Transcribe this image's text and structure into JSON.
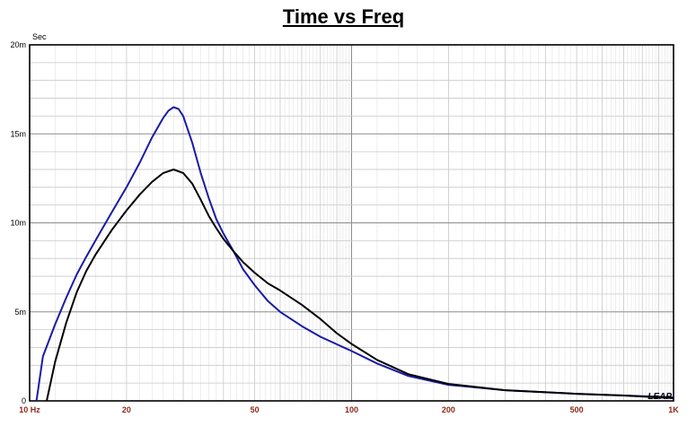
{
  "chart_data": {
    "type": "line",
    "title": "Time vs Freq",
    "y_unit": "Sec",
    "x_scale": "log",
    "xlim": [
      10,
      1000
    ],
    "ylim": [
      0,
      0.02
    ],
    "grid": true,
    "x_tick_labels": [
      {
        "value": 10,
        "label": "10  Hz"
      },
      {
        "value": 20,
        "label": "20"
      },
      {
        "value": 50,
        "label": "50"
      },
      {
        "value": 100,
        "label": "100"
      },
      {
        "value": 200,
        "label": "200"
      },
      {
        "value": 500,
        "label": "500"
      },
      {
        "value": 1000,
        "label": "1K"
      }
    ],
    "y_tick_labels": [
      {
        "value": 0,
        "label": "0"
      },
      {
        "value": 0.005,
        "label": "5m"
      },
      {
        "value": 0.01,
        "label": "10m"
      },
      {
        "value": 0.015,
        "label": "15m"
      },
      {
        "value": 0.02,
        "label": "20m"
      }
    ],
    "series": [
      {
        "color": "#1a1aa6",
        "x": [
          10.5,
          11,
          12,
          13,
          14,
          15,
          16,
          18,
          20,
          22,
          24,
          26,
          27,
          28,
          29,
          30,
          32,
          34,
          36,
          38,
          40,
          43,
          46,
          50,
          55,
          60,
          70,
          80,
          100,
          120,
          150,
          200,
          300,
          500,
          700,
          1000
        ],
        "y": [
          0,
          0.0025,
          0.0043,
          0.0058,
          0.0071,
          0.0081,
          0.009,
          0.0106,
          0.012,
          0.0134,
          0.0148,
          0.0159,
          0.0163,
          0.0165,
          0.0164,
          0.016,
          0.0145,
          0.0128,
          0.0114,
          0.0102,
          0.0094,
          0.0084,
          0.0074,
          0.0065,
          0.0056,
          0.005,
          0.0042,
          0.0036,
          0.0028,
          0.0021,
          0.0014,
          0.0009,
          0.0006,
          0.0004,
          0.0003,
          0.0002
        ]
      },
      {
        "color": "#000000",
        "x": [
          11.3,
          12,
          13,
          14,
          15,
          16,
          18,
          20,
          22,
          24,
          26,
          28,
          30,
          32,
          34,
          36,
          38,
          40,
          43,
          46,
          50,
          55,
          60,
          70,
          80,
          90,
          100,
          120,
          150,
          200,
          300,
          500,
          700,
          1000
        ],
        "y": [
          0,
          0.0022,
          0.0044,
          0.0061,
          0.0073,
          0.0082,
          0.0096,
          0.0107,
          0.0116,
          0.0123,
          0.0128,
          0.013,
          0.0128,
          0.0122,
          0.0113,
          0.0104,
          0.0097,
          0.0091,
          0.0084,
          0.0078,
          0.0072,
          0.0066,
          0.0062,
          0.0054,
          0.0046,
          0.0038,
          0.0032,
          0.0023,
          0.0015,
          0.00095,
          0.0006,
          0.0004,
          0.0003,
          0.00015
        ]
      }
    ],
    "watermark": "LEAP"
  }
}
